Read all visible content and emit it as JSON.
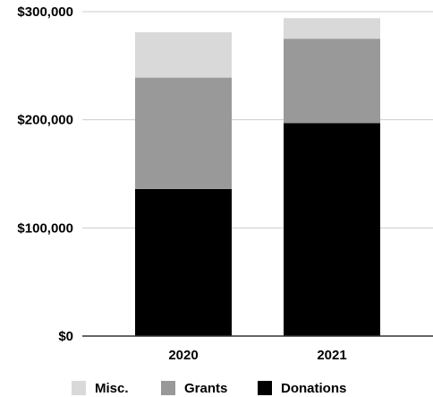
{
  "chart_data": {
    "type": "bar",
    "stacked": true,
    "categories": [
      "2020",
      "2021"
    ],
    "series": [
      {
        "name": "Donations",
        "values": [
          136000,
          197000
        ],
        "color": "#000000"
      },
      {
        "name": "Grants",
        "values": [
          103000,
          78000
        ],
        "color": "#999999"
      },
      {
        "name": "Misc.",
        "values": [
          42000,
          19000
        ],
        "color": "#d9d9d9"
      }
    ],
    "ylim": [
      0,
      300000
    ],
    "yticks": [
      0,
      100000,
      200000,
      300000
    ],
    "ytick_labels": [
      "$0",
      "$100,000",
      "$200,000",
      "$300,000"
    ],
    "grid": true,
    "legend_position": "bottom",
    "legend_order": [
      "Misc.",
      "Grants",
      "Donations"
    ]
  }
}
